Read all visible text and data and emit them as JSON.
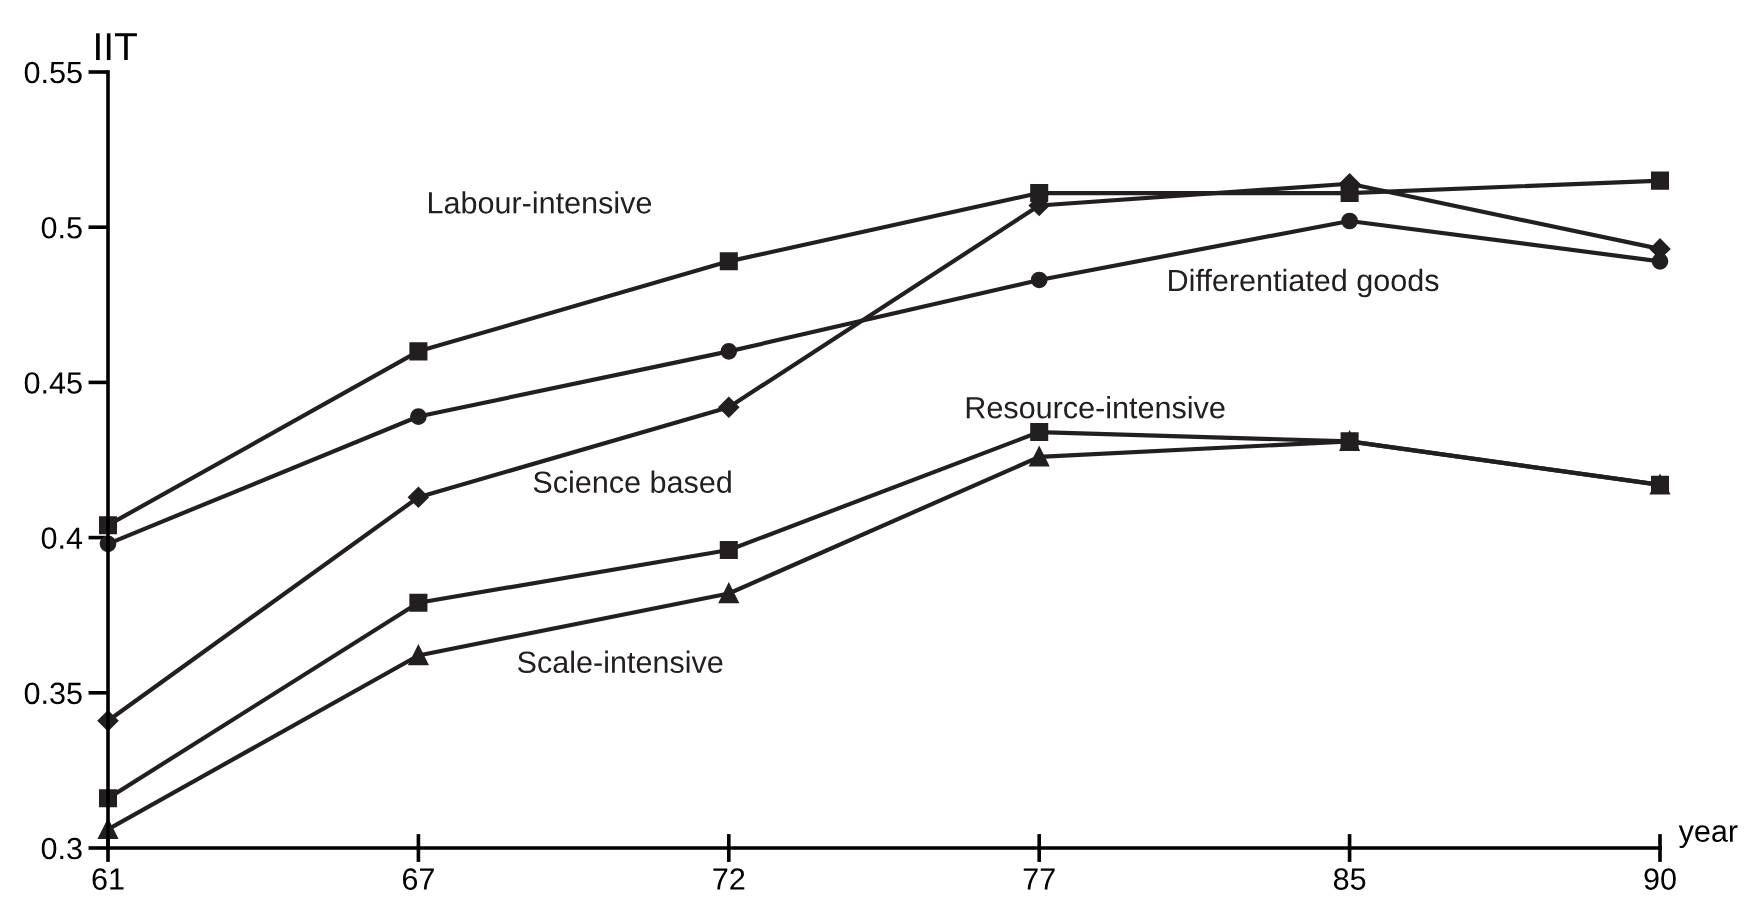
{
  "chart_data": {
    "type": "line",
    "ylabel": "IIT",
    "xlabel": "year",
    "categories": [
      "61",
      "67",
      "72",
      "77",
      "85",
      "90"
    ],
    "ylim": [
      0.3,
      0.55
    ],
    "yticks": [
      0.3,
      0.35,
      0.4,
      0.45,
      0.5,
      0.55
    ],
    "grid": false,
    "legend": false,
    "series": [
      {
        "name": "Labour-intensive",
        "color": "#231f20",
        "marker": "square",
        "values": [
          0.404,
          0.46,
          0.489,
          0.511,
          0.511,
          0.515
        ]
      },
      {
        "name": "Differentiated goods",
        "color": "#231f20",
        "marker": "circle",
        "values": [
          0.398,
          0.439,
          0.46,
          0.483,
          0.502,
          0.489
        ]
      },
      {
        "name": "Science based",
        "color": "#231f20",
        "marker": "diamond",
        "values": [
          0.341,
          0.413,
          0.442,
          0.507,
          0.514,
          0.493
        ]
      },
      {
        "name": "Resource-intensive",
        "color": "#231f20",
        "marker": "square",
        "values": [
          0.316,
          0.379,
          0.396,
          0.434,
          0.431,
          0.417
        ]
      },
      {
        "name": "Scale-intensive",
        "color": "#231f20",
        "marker": "triangle",
        "values": [
          0.306,
          0.362,
          0.382,
          0.426,
          0.431,
          0.417
        ]
      }
    ]
  }
}
